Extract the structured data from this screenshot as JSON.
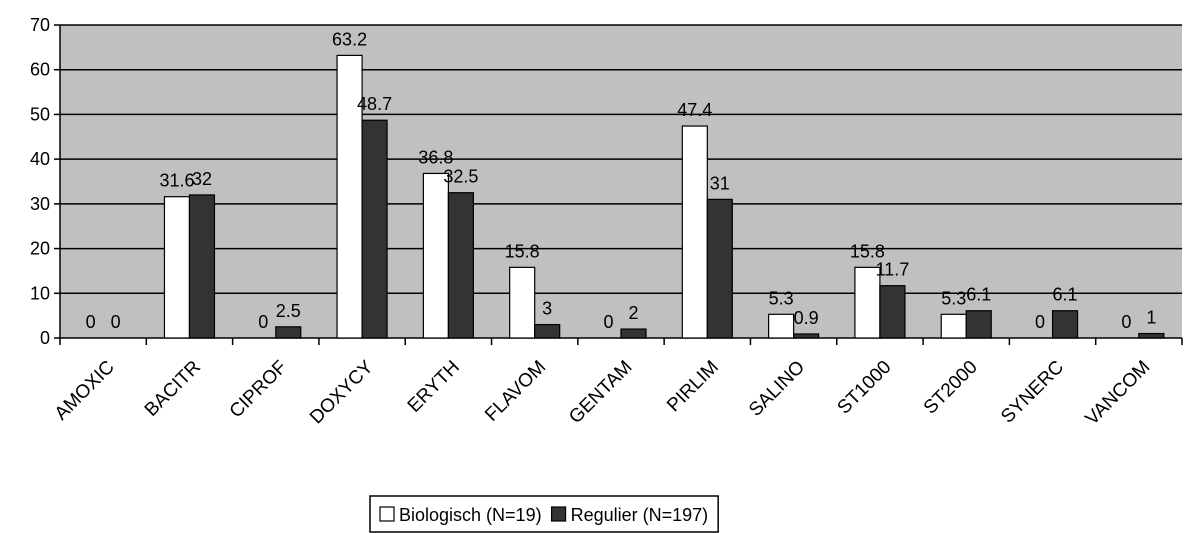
{
  "chart_data": {
    "type": "bar",
    "categories": [
      "AMOXIC",
      "BACITR",
      "CIPROF",
      "DOXYCY",
      "ERYTH",
      "FLAVOM",
      "GENTAM",
      "PIRLIM",
      "SALINO",
      "ST1000",
      "ST2000",
      "SYNERC",
      "VANCOM"
    ],
    "series": [
      {
        "name": "Biologisch (N=19)",
        "color": "#ffffff",
        "values": [
          0,
          31.6,
          0,
          63.2,
          36.8,
          15.8,
          0,
          47.4,
          5.3,
          15.8,
          5.3,
          0,
          0
        ]
      },
      {
        "name": "Regulier (N=197)",
        "color": "#333333",
        "values": [
          0,
          32,
          2.5,
          48.7,
          32.5,
          3,
          2,
          31,
          0.9,
          11.7,
          6.1,
          6.1,
          1
        ]
      }
    ],
    "ylim": [
      0,
      70
    ],
    "yticks": [
      0,
      10,
      20,
      30,
      40,
      50,
      60,
      70
    ],
    "grid": true,
    "legend": "bottom"
  }
}
